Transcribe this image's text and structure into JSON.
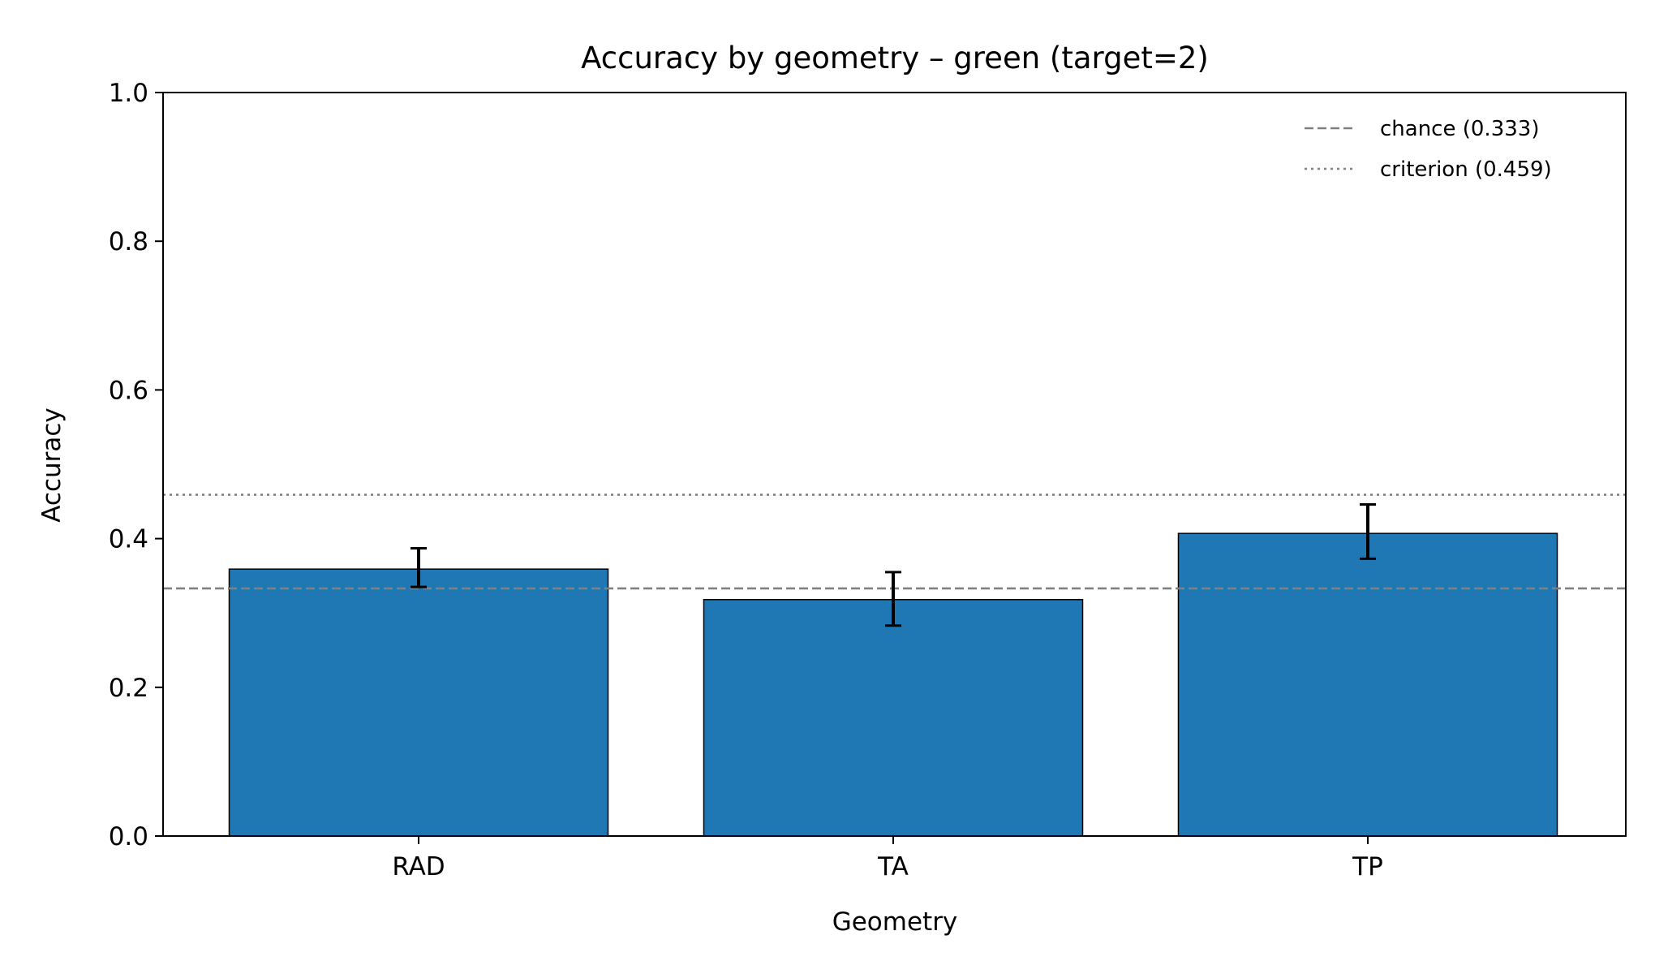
{
  "chart_data": {
    "type": "bar",
    "title": "Accuracy by geometry – green (target=2)",
    "xlabel": "Geometry",
    "ylabel": "Accuracy",
    "categories": [
      "RAD",
      "TA",
      "TP"
    ],
    "values": [
      0.359,
      0.318,
      0.407
    ],
    "errors": [
      {
        "low": 0.335,
        "high": 0.387
      },
      {
        "low": 0.283,
        "high": 0.355
      },
      {
        "low": 0.373,
        "high": 0.446
      }
    ],
    "ylim": [
      0,
      1
    ],
    "yticks": [
      0.0,
      0.2,
      0.4,
      0.6,
      0.8,
      1.0
    ],
    "ytick_labels": [
      "0.0",
      "0.2",
      "0.4",
      "0.6",
      "0.8",
      "1.0"
    ],
    "reference_lines": [
      {
        "label": "chance (0.333)",
        "value": 0.333,
        "style": "dashed",
        "color": "#808080"
      },
      {
        "label": "criterion (0.459)",
        "value": 0.459,
        "style": "dotted",
        "color": "#808080"
      }
    ],
    "bar_color": "#1f77b4",
    "grid": false,
    "legend_position": "top-right"
  }
}
